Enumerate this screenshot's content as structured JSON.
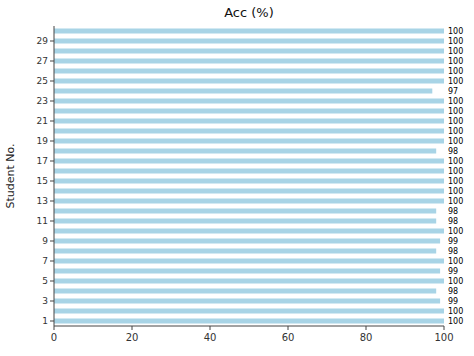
{
  "chart_data": {
    "type": "bar",
    "orientation": "horizontal",
    "title": "Acc (%)",
    "ylabel": "Student No.",
    "categories": [
      "1",
      null,
      "3",
      null,
      "5",
      null,
      "7",
      null,
      "9",
      null,
      "11",
      null,
      "13",
      null,
      "15",
      null,
      "17",
      null,
      "19",
      null,
      "21",
      null,
      "23",
      null,
      "25",
      null,
      "27",
      null,
      "29",
      null
    ],
    "values": [
      100,
      100,
      99,
      98,
      100,
      99,
      100,
      98,
      99,
      100,
      98,
      98,
      100,
      100,
      100,
      100,
      100,
      98,
      100,
      100,
      100,
      100,
      100,
      97,
      100,
      100,
      100,
      100,
      100,
      100
    ],
    "color": "#a8d4e6",
    "xlim": [
      0,
      100
    ],
    "xticks": [
      0,
      20,
      40,
      60,
      80,
      100
    ],
    "grid": false,
    "data_labels": true
  }
}
